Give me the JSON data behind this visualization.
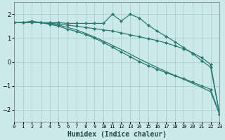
{
  "xlabel": "Humidex (Indice chaleur)",
  "background_color": "#cce9e9",
  "grid_color": "#aacece",
  "line_color": "#2d7a72",
  "xlim": [
    0,
    23
  ],
  "ylim": [
    -2.5,
    2.5
  ],
  "yticks": [
    -2,
    -1,
    0,
    1,
    2
  ],
  "xtick_labels": [
    "0",
    "1",
    "2",
    "3",
    "4",
    "5",
    "6",
    "7",
    "8",
    "9",
    "10",
    "11",
    "12",
    "13",
    "14",
    "15",
    "16",
    "17",
    "18",
    "19",
    "20",
    "21",
    "22",
    "23"
  ],
  "series": [
    {
      "x": [
        0,
        1,
        2,
        3,
        4,
        5,
        6,
        7,
        8,
        9,
        10,
        11,
        12,
        13,
        14,
        15,
        16,
        17,
        18,
        19,
        20,
        21,
        22,
        23
      ],
      "y": [
        1.65,
        1.65,
        1.65,
        1.65,
        1.6,
        1.55,
        1.45,
        1.35,
        1.2,
        1.05,
        0.88,
        0.7,
        0.52,
        0.33,
        0.13,
        -0.05,
        -0.23,
        -0.4,
        -0.57,
        -0.73,
        -0.9,
        -1.07,
        -1.25,
        -2.2
      ],
      "marker": null,
      "linewidth": 0.9
    },
    {
      "x": [
        0,
        1,
        2,
        3,
        4,
        5,
        6,
        7,
        8,
        9,
        10,
        11,
        12,
        13,
        14,
        15,
        16,
        17,
        18,
        19,
        20,
        21,
        22,
        23
      ],
      "y": [
        1.65,
        1.65,
        1.72,
        1.65,
        1.65,
        1.65,
        1.62,
        1.62,
        1.62,
        1.62,
        1.62,
        2.0,
        1.72,
        2.0,
        1.85,
        1.55,
        1.3,
        1.08,
        0.85,
        0.6,
        0.35,
        0.05,
        -0.22,
        -2.2
      ],
      "marker": "D",
      "markersize": 2.0,
      "linewidth": 0.9
    },
    {
      "x": [
        0,
        1,
        2,
        3,
        4,
        5,
        6,
        7,
        8,
        9,
        10,
        11,
        12,
        13,
        14,
        15,
        16,
        17,
        18,
        19,
        20,
        21,
        22,
        23
      ],
      "y": [
        1.65,
        1.65,
        1.65,
        1.65,
        1.58,
        1.5,
        1.38,
        1.28,
        1.15,
        1.0,
        0.82,
        0.62,
        0.42,
        0.22,
        0.02,
        -0.15,
        -0.3,
        -0.45,
        -0.58,
        -0.7,
        -0.85,
        -1.0,
        -1.15,
        -2.2
      ],
      "marker": "D",
      "markersize": 2.0,
      "linewidth": 0.9
    },
    {
      "x": [
        0,
        1,
        2,
        3,
        4,
        5,
        6,
        7,
        8,
        9,
        10,
        11,
        12,
        13,
        14,
        15,
        16,
        17,
        18,
        19,
        20,
        21,
        22,
        23
      ],
      "y": [
        1.65,
        1.65,
        1.65,
        1.65,
        1.62,
        1.6,
        1.55,
        1.5,
        1.45,
        1.4,
        1.35,
        1.3,
        1.22,
        1.14,
        1.06,
        0.98,
        0.9,
        0.8,
        0.68,
        0.55,
        0.38,
        0.18,
        -0.1,
        -2.2
      ],
      "marker": "D",
      "markersize": 2.0,
      "linewidth": 0.9
    }
  ]
}
